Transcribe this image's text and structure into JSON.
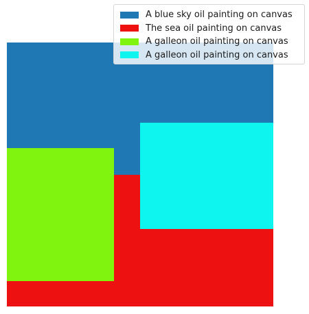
{
  "figure": {
    "regions": [
      {
        "id": "sky",
        "label": "A blue sky oil painting on canvas",
        "color": "#1f77b4"
      },
      {
        "id": "sea",
        "label": "The sea oil painting on canvas",
        "color": "#ee1111"
      },
      {
        "id": "galleon-1",
        "label": "A galleon oil painting on canvas",
        "color": "#80f40e"
      },
      {
        "id": "galleon-2",
        "label": "A galleon oil painting on canvas",
        "color": "#0ef4ef"
      }
    ]
  },
  "legend": {
    "placement": "top-right",
    "items": [
      {
        "label": "A blue sky oil painting on canvas",
        "color": "#1f77b4"
      },
      {
        "label": "The sea oil painting on canvas",
        "color": "#ee1111"
      },
      {
        "label": "A galleon oil painting on canvas",
        "color": "#80f40e"
      },
      {
        "label": "A galleon oil painting on canvas",
        "color": "#0ef4ef"
      }
    ]
  }
}
